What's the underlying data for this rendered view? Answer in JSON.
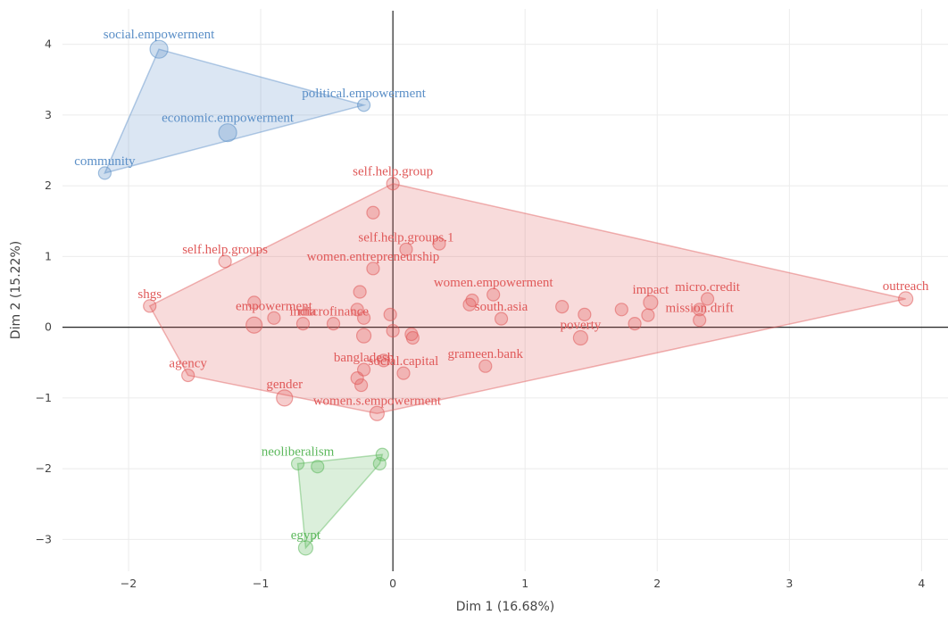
{
  "chart_data": {
    "type": "scatter",
    "title": "",
    "xlabel": "Dim 1 (16.68%)",
    "ylabel": "Dim 2 (15.22%)",
    "xlim": [
      -2.5,
      4.2
    ],
    "ylim": [
      -3.45,
      4.5
    ],
    "xticks": [
      -2,
      -1,
      0,
      1,
      2,
      3,
      4
    ],
    "yticks": [
      -3,
      -2,
      -1,
      0,
      1,
      2,
      3,
      4
    ],
    "grid": true,
    "series": [
      {
        "color": "#5b8fc7",
        "hull": [
          [
            -1.77,
            3.93
          ],
          [
            -0.22,
            3.14
          ],
          [
            -2.18,
            2.18
          ]
        ],
        "points": [
          {
            "x": -1.77,
            "y": 3.93,
            "r": 10,
            "label": "social.empowerment"
          },
          {
            "x": -0.22,
            "y": 3.14,
            "r": 7,
            "label": "political.empowerment"
          },
          {
            "x": -1.25,
            "y": 2.75,
            "r": 10,
            "label": "economic.empowerment"
          },
          {
            "x": -2.18,
            "y": 2.18,
            "r": 7,
            "label": "community"
          }
        ]
      },
      {
        "color": "#e05a5a",
        "hull": [
          [
            0.0,
            2.03
          ],
          [
            3.88,
            0.4
          ],
          [
            -0.12,
            -1.22
          ],
          [
            -1.55,
            -0.68
          ],
          [
            -1.84,
            0.3
          ]
        ],
        "points": [
          {
            "x": 0.0,
            "y": 2.03,
            "r": 7,
            "label": "self.help.group"
          },
          {
            "x": -0.15,
            "y": 1.62,
            "r": 7,
            "label": ""
          },
          {
            "x": 0.35,
            "y": 1.18,
            "r": 7,
            "label": ""
          },
          {
            "x": 0.1,
            "y": 1.1,
            "r": 7,
            "label": "self.help.groups.1"
          },
          {
            "x": -1.27,
            "y": 0.93,
            "r": 7,
            "label": "self.help.groups"
          },
          {
            "x": -0.15,
            "y": 0.83,
            "r": 7,
            "label": "women.entrepreneurship"
          },
          {
            "x": -1.84,
            "y": 0.3,
            "r": 7,
            "label": "shgs"
          },
          {
            "x": -1.05,
            "y": 0.35,
            "r": 7,
            "label": ""
          },
          {
            "x": -1.05,
            "y": 0.03,
            "r": 9,
            "label": ""
          },
          {
            "x": -0.9,
            "y": 0.13,
            "r": 7,
            "label": "empowerment"
          },
          {
            "x": -0.68,
            "y": 0.05,
            "r": 7,
            "label": "india"
          },
          {
            "x": -0.25,
            "y": 0.5,
            "r": 7,
            "label": ""
          },
          {
            "x": -0.27,
            "y": 0.25,
            "r": 7,
            "label": ""
          },
          {
            "x": -0.45,
            "y": 0.05,
            "r": 7,
            "label": "microfinance"
          },
          {
            "x": -0.22,
            "y": 0.13,
            "r": 7,
            "label": ""
          },
          {
            "x": -0.02,
            "y": 0.18,
            "r": 7,
            "label": ""
          },
          {
            "x": 0.0,
            "y": -0.05,
            "r": 7,
            "label": ""
          },
          {
            "x": -0.22,
            "y": -0.12,
            "r": 8,
            "label": ""
          },
          {
            "x": 0.14,
            "y": -0.1,
            "r": 7,
            "label": ""
          },
          {
            "x": 0.15,
            "y": -0.15,
            "r": 7,
            "label": ""
          },
          {
            "x": 0.76,
            "y": 0.46,
            "r": 7,
            "label": "women.empowerment"
          },
          {
            "x": 0.6,
            "y": 0.38,
            "r": 7,
            "label": ""
          },
          {
            "x": 0.58,
            "y": 0.32,
            "r": 7,
            "label": ""
          },
          {
            "x": 0.82,
            "y": 0.12,
            "r": 7,
            "label": "south.asia"
          },
          {
            "x": 1.28,
            "y": 0.29,
            "r": 7,
            "label": ""
          },
          {
            "x": 1.45,
            "y": 0.18,
            "r": 7,
            "label": ""
          },
          {
            "x": 1.42,
            "y": -0.15,
            "r": 8,
            "label": "poverty"
          },
          {
            "x": 1.73,
            "y": 0.25,
            "r": 7,
            "label": ""
          },
          {
            "x": 1.83,
            "y": 0.05,
            "r": 7,
            "label": ""
          },
          {
            "x": 1.95,
            "y": 0.35,
            "r": 8,
            "label": "impact"
          },
          {
            "x": 1.93,
            "y": 0.17,
            "r": 7,
            "label": ""
          },
          {
            "x": 2.38,
            "y": 0.4,
            "r": 7,
            "label": "micro.credit"
          },
          {
            "x": 2.32,
            "y": 0.1,
            "r": 7,
            "label": "mission.drift"
          },
          {
            "x": 2.32,
            "y": 0.25,
            "r": 7,
            "label": ""
          },
          {
            "x": 3.88,
            "y": 0.4,
            "r": 8,
            "label": "outreach"
          },
          {
            "x": -1.55,
            "y": -0.68,
            "r": 7,
            "label": "agency"
          },
          {
            "x": -0.82,
            "y": -1.0,
            "r": 9,
            "label": "gender"
          },
          {
            "x": -0.22,
            "y": -0.6,
            "r": 7,
            "label": "bangladesh"
          },
          {
            "x": -0.27,
            "y": -0.72,
            "r": 7,
            "label": ""
          },
          {
            "x": -0.24,
            "y": -0.82,
            "r": 7,
            "label": ""
          },
          {
            "x": -0.07,
            "y": -0.47,
            "r": 7,
            "label": ""
          },
          {
            "x": 0.08,
            "y": -0.65,
            "r": 7,
            "label": "social.capital"
          },
          {
            "x": 0.7,
            "y": -0.55,
            "r": 7,
            "label": "grameen.bank"
          },
          {
            "x": -0.12,
            "y": -1.22,
            "r": 8,
            "label": "women.s.empowerment"
          }
        ]
      },
      {
        "color": "#5cb85c",
        "hull": [
          [
            -0.72,
            -1.93
          ],
          [
            -0.08,
            -1.8
          ],
          [
            -0.1,
            -1.93
          ],
          [
            -0.66,
            -3.12
          ]
        ],
        "points": [
          {
            "x": -0.72,
            "y": -1.93,
            "r": 7,
            "label": "neoliberalism"
          },
          {
            "x": -0.57,
            "y": -1.97,
            "r": 7,
            "label": ""
          },
          {
            "x": -0.08,
            "y": -1.8,
            "r": 7,
            "label": ""
          },
          {
            "x": -0.1,
            "y": -1.93,
            "r": 7,
            "label": ""
          },
          {
            "x": -0.66,
            "y": -3.12,
            "r": 8,
            "label": "egypt"
          }
        ]
      }
    ]
  }
}
